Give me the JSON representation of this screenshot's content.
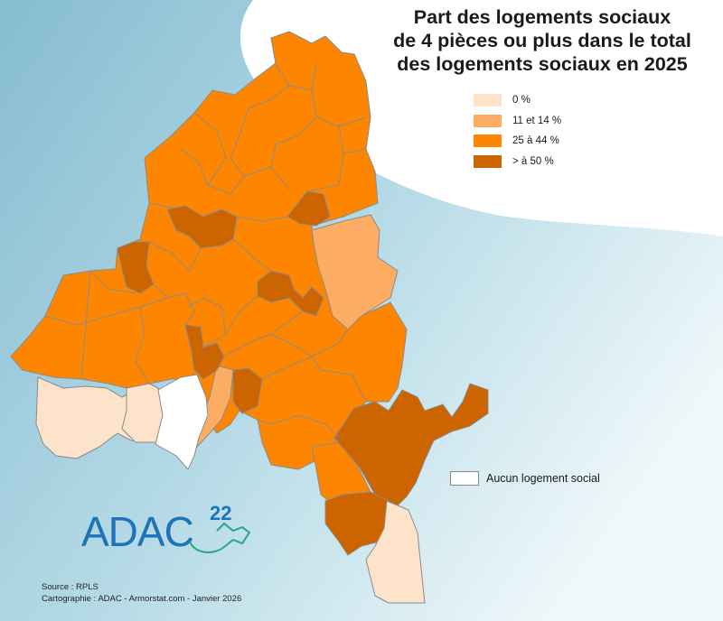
{
  "title": {
    "line1": "Part des logements sociaux",
    "line2": "de 4 pièces ou plus dans le total",
    "line3": "des logements sociaux en 2025"
  },
  "legend": [
    {
      "label": "0 %",
      "color": "#fde3c9"
    },
    {
      "label": "11 et 14 %",
      "color": "#fdac63"
    },
    {
      "label": "25 à 44 %",
      "color": "#fe8500"
    },
    {
      "label": "> à 50 %",
      "color": "#cc6400"
    }
  ],
  "no_social": {
    "label": "Aucun logement social",
    "color": "#ffffff"
  },
  "logo": {
    "text": "ADAC",
    "number": "22"
  },
  "source": {
    "line1": "Source : RPLS",
    "line2": "Cartographie : ADAC - Armorstat.com - Janvier 2026"
  },
  "colors": {
    "sea_dark": "#8ec3d6",
    "sea_light": "#e4f1f6",
    "border": "#8a8a8a"
  }
}
